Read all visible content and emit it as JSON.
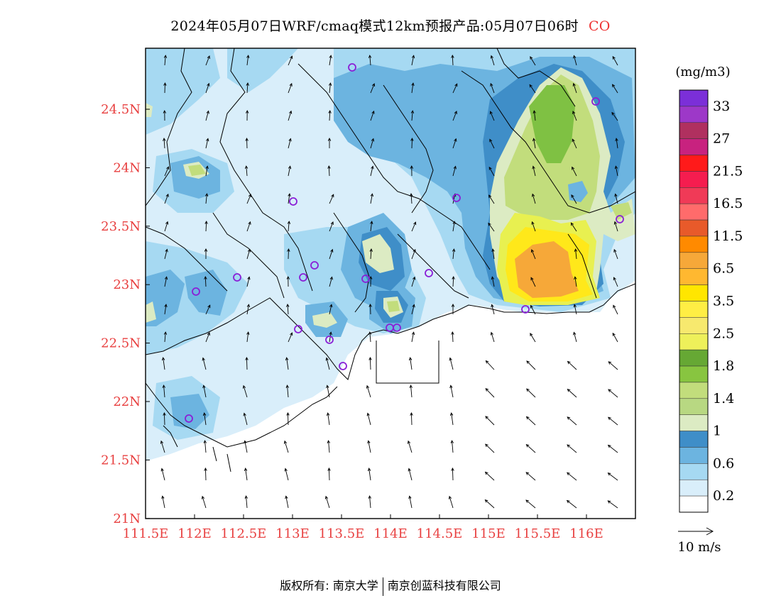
{
  "title": {
    "text": "2024年05月07日WRF/cmaq模式12km预报产品:05月07日06时",
    "species": "CO"
  },
  "map": {
    "lat_ticks": [
      "24.5N",
      "24N",
      "23.5N",
      "23N",
      "22.5N",
      "22N",
      "21.5N",
      "21N"
    ],
    "lon_ticks": [
      "111.5E",
      "112E",
      "112.5E",
      "113E",
      "113.5E",
      "114E",
      "114.5E",
      "115E",
      "115.5E",
      "116E"
    ],
    "colors": {
      "c0": "#ffffff",
      "c1": "#d9eefa",
      "c2": "#a6d9f2",
      "c3": "#6cb4e0",
      "c4": "#3f8ec8",
      "c5": "#dcebc3",
      "c6": "#c2dd7c",
      "c7": "#7fc143",
      "c8": "#e8f050",
      "c9": "#ffe81a",
      "c10": "#f6a839",
      "border": "#000000",
      "station": "#8a1fd6",
      "axis_label": "#e84040"
    },
    "stations": 18,
    "vector_ref": "10 m/s"
  },
  "colorbar": {
    "unit": "(mg/m3)",
    "labels": [
      "33",
      "27",
      "21.5",
      "16.5",
      "11.5",
      "6.5",
      "3.5",
      "2.5",
      "1.8",
      "1.4",
      "1",
      "0.6",
      "0.2"
    ],
    "colors": [
      "#7b2fd8",
      "#9d38c8",
      "#b0305f",
      "#c8227f",
      "#ff1a1a",
      "#f51d4f",
      "#f03a57",
      "#ff6b6b",
      "#e85a2a",
      "#ff8a00",
      "#f6a839",
      "#ffb830",
      "#ffe600",
      "#ffee44",
      "#f7e96e",
      "#eef05a",
      "#66a834",
      "#88c540",
      "#c2dd7c",
      "#b8d882",
      "#dcebc3",
      "#3f8ec8",
      "#6cb4e0",
      "#a6d9f2",
      "#d9eefa",
      "#ffffff"
    ]
  },
  "footer": {
    "left": "版权所有: 南京大学",
    "right": "南京创蓝科技有限公司"
  }
}
